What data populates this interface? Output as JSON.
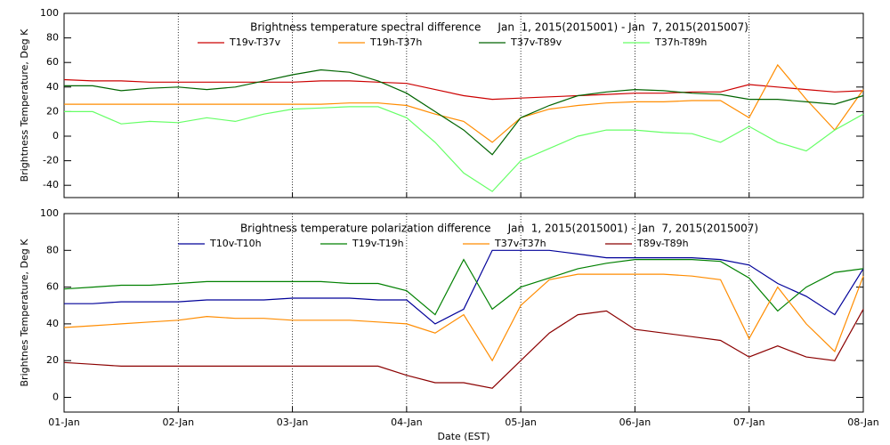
{
  "chart_data": [
    {
      "type": "line",
      "title": "Brightness temperature spectral difference     Jan  1, 2015(2015001) - Jan  7, 2015(2015007)",
      "y_label": "Brightness Temperature, Deg K",
      "grid": "x",
      "x": [
        0,
        0.25,
        0.5,
        0.75,
        1,
        1.25,
        1.5,
        1.75,
        2,
        2.25,
        2.5,
        2.75,
        3,
        3.25,
        3.5,
        3.75,
        4,
        4.25,
        4.5,
        4.75,
        5,
        5.25,
        5.5,
        5.75,
        6,
        6.25,
        6.5,
        6.75,
        7
      ],
      "xlim": [
        0,
        7
      ],
      "xticks": [
        0,
        1,
        2,
        3,
        4,
        5,
        6,
        7
      ],
      "ylim": [
        -50,
        100
      ],
      "yticks": [
        -40,
        -20,
        0,
        20,
        40,
        60,
        80,
        100
      ],
      "series": [
        {
          "name": "T19v-T37v",
          "color": "#cc0000",
          "values": [
            46,
            45,
            45,
            44,
            44,
            44,
            44,
            44,
            44,
            45,
            45,
            44,
            43,
            38,
            33,
            30,
            31,
            32,
            33,
            34,
            35,
            35,
            36,
            36,
            42,
            40,
            38,
            36,
            37
          ]
        },
        {
          "name": "T19h-T37h",
          "color": "#ff8c00",
          "values": [
            26,
            26,
            26,
            26,
            26,
            26,
            26,
            26,
            26,
            26,
            27,
            27,
            25,
            18,
            12,
            -5,
            15,
            22,
            25,
            27,
            28,
            28,
            29,
            29,
            15,
            58,
            30,
            5,
            38
          ]
        },
        {
          "name": "T37v-T89v",
          "color": "#006400",
          "values": [
            41,
            41,
            37,
            39,
            40,
            38,
            40,
            45,
            50,
            54,
            52,
            45,
            35,
            20,
            5,
            -15,
            15,
            25,
            33,
            36,
            38,
            37,
            35,
            34,
            30,
            30,
            28,
            26,
            33
          ]
        },
        {
          "name": "T37h-T89h",
          "color": "#66ff66",
          "values": [
            20,
            20,
            10,
            12,
            11,
            15,
            12,
            18,
            22,
            23,
            24,
            24,
            15,
            -5,
            -30,
            -45,
            -20,
            -10,
            0,
            5,
            5,
            3,
            2,
            -5,
            8,
            -5,
            -12,
            5,
            18
          ]
        }
      ]
    },
    {
      "type": "line",
      "title": "Brightness temperature polarization difference     Jan  1, 2015(2015001) - Jan  7, 2015(2015007)",
      "y_label": "Brightnes Temperature, Deg K",
      "x_label": "Date (EST)",
      "grid": "x",
      "x": [
        0,
        0.25,
        0.5,
        0.75,
        1,
        1.25,
        1.5,
        1.75,
        2,
        2.25,
        2.5,
        2.75,
        3,
        3.25,
        3.5,
        3.75,
        4,
        4.25,
        4.5,
        4.75,
        5,
        5.25,
        5.5,
        5.75,
        6,
        6.25,
        6.5,
        6.75,
        7
      ],
      "xlim": [
        0,
        7
      ],
      "xticks": [
        {
          "value": 0,
          "label": "01-Jan"
        },
        {
          "value": 1,
          "label": "02-Jan"
        },
        {
          "value": 2,
          "label": "03-Jan"
        },
        {
          "value": 3,
          "label": "04-Jan"
        },
        {
          "value": 4,
          "label": "05-Jan"
        },
        {
          "value": 5,
          "label": "06-Jan"
        },
        {
          "value": 6,
          "label": "07-Jan"
        },
        {
          "value": 7,
          "label": "08-Jan"
        }
      ],
      "ylim": [
        -8,
        100
      ],
      "yticks": [
        0,
        20,
        40,
        60,
        80,
        100
      ],
      "series": [
        {
          "name": "T10v-T10h",
          "color": "#000099",
          "values": [
            51,
            51,
            52,
            52,
            52,
            53,
            53,
            53,
            54,
            54,
            54,
            53,
            53,
            40,
            48,
            80,
            80,
            80,
            78,
            76,
            76,
            76,
            76,
            75,
            72,
            62,
            55,
            45,
            70
          ]
        },
        {
          "name": "T19v-T19h",
          "color": "#008000",
          "values": [
            59,
            60,
            61,
            61,
            62,
            63,
            63,
            63,
            63,
            63,
            62,
            62,
            58,
            45,
            75,
            48,
            60,
            65,
            70,
            73,
            75,
            75,
            75,
            74,
            65,
            47,
            60,
            68,
            70
          ]
        },
        {
          "name": "T37v-T37h",
          "color": "#ff8c00",
          "values": [
            38,
            39,
            40,
            41,
            42,
            44,
            43,
            43,
            42,
            42,
            42,
            41,
            40,
            35,
            45,
            20,
            50,
            64,
            67,
            67,
            67,
            67,
            66,
            64,
            32,
            60,
            40,
            25,
            66
          ]
        },
        {
          "name": "T89v-T89h",
          "color": "#8b0000",
          "values": [
            19,
            18,
            17,
            17,
            17,
            17,
            17,
            17,
            17,
            17,
            17,
            17,
            12,
            8,
            8,
            5,
            20,
            35,
            45,
            47,
            37,
            35,
            33,
            31,
            22,
            28,
            22,
            20,
            48
          ]
        }
      ]
    }
  ]
}
